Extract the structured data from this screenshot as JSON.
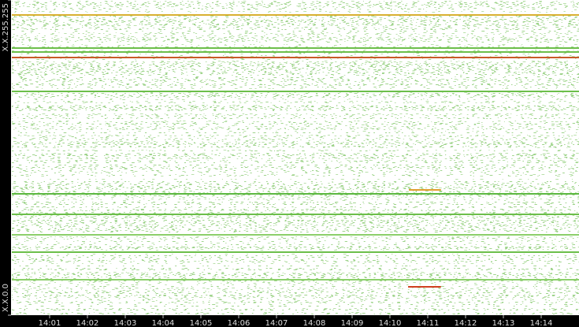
{
  "chart_data": {
    "type": "activity-map",
    "xlim": [
      0,
      15
    ],
    "xticks": [
      {
        "value": 1,
        "label": "14:01"
      },
      {
        "value": 2,
        "label": "14:02"
      },
      {
        "value": 3,
        "label": "14:03"
      },
      {
        "value": 4,
        "label": "14:04"
      },
      {
        "value": 5,
        "label": "14:05"
      },
      {
        "value": 6,
        "label": "14:06"
      },
      {
        "value": 7,
        "label": "14:07"
      },
      {
        "value": 8,
        "label": "14:08"
      },
      {
        "value": 9,
        "label": "14:09"
      },
      {
        "value": 10,
        "label": "14:10"
      },
      {
        "value": 11,
        "label": "14:11"
      },
      {
        "value": 12,
        "label": "14:12"
      },
      {
        "value": 13,
        "label": "14:13"
      },
      {
        "value": 14,
        "label": "14:14"
      }
    ],
    "ylim": [
      0,
      65535
    ],
    "yticks": [
      {
        "value": 0,
        "label": "X.X.0.0"
      },
      {
        "value": 65535,
        "label": "X.X.255.255"
      }
    ],
    "lines": [
      {
        "address": 62422,
        "start": 0,
        "end": 15,
        "color": "#d8b030"
      },
      {
        "address": 55541,
        "start": 0,
        "end": 15,
        "color": "#6cbf4a"
      },
      {
        "address": 54722,
        "start": 0,
        "end": 15,
        "color": "#6cbf4a"
      },
      {
        "address": 53575,
        "start": 0,
        "end": 15,
        "color": "#c85a28"
      },
      {
        "address": 46530,
        "start": 0,
        "end": 15,
        "color": "#6cbf4a"
      },
      {
        "address": 26050,
        "start": 10.5,
        "end": 11.35,
        "color": "#e0a030"
      },
      {
        "address": 25231,
        "start": 0,
        "end": 15,
        "color": "#5cb840"
      },
      {
        "address": 20971,
        "start": 0,
        "end": 15,
        "color": "#6cbf4a"
      },
      {
        "address": 16711,
        "start": 0,
        "end": 15,
        "color": "#8ccf6a"
      },
      {
        "address": 13107,
        "start": 0,
        "end": 15,
        "color": "#6cbf4a"
      },
      {
        "address": 7373,
        "start": 0,
        "end": 15,
        "color": "#8ccf6a"
      },
      {
        "address": 5898,
        "start": 10.48,
        "end": 11.35,
        "color": "#d04020"
      }
    ]
  }
}
